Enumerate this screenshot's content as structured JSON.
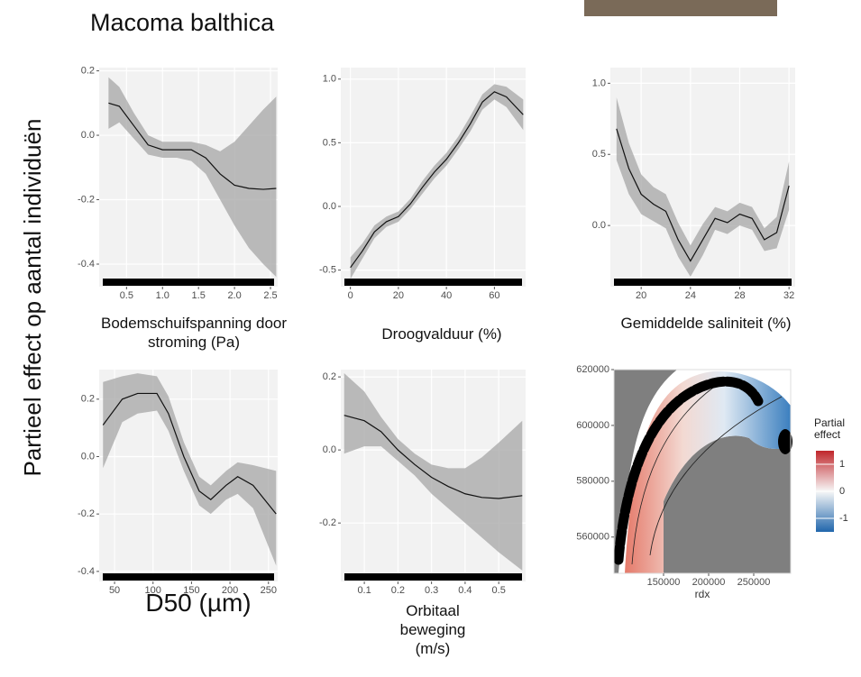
{
  "title": "Macoma balthica",
  "ylabel": "Partieel effect op aantal individuën",
  "chart_data": [
    {
      "type": "line",
      "xlabel": "Bodemschuifspanning door stroming (Pa)",
      "x": [
        0.25,
        0.4,
        0.6,
        0.8,
        1.0,
        1.2,
        1.4,
        1.6,
        1.8,
        2.0,
        2.2,
        2.4,
        2.58
      ],
      "values": [
        0.1,
        0.09,
        0.03,
        -0.03,
        -0.045,
        -0.045,
        -0.045,
        -0.07,
        -0.12,
        -0.155,
        -0.165,
        -0.168,
        -0.165
      ],
      "upper": [
        0.18,
        0.15,
        0.07,
        0.0,
        -0.02,
        -0.02,
        -0.02,
        -0.03,
        -0.05,
        -0.02,
        0.03,
        0.08,
        0.12
      ],
      "lower": [
        0.02,
        0.04,
        -0.01,
        -0.06,
        -0.07,
        -0.07,
        -0.08,
        -0.12,
        -0.2,
        -0.28,
        -0.35,
        -0.4,
        -0.44
      ],
      "xlim": [
        0.12,
        2.6
      ],
      "ylim": [
        -0.47,
        0.21
      ],
      "xticks": [
        0.5,
        {
          "value": 1.0,
          "label": "1.0"
        },
        1.5,
        {
          "value": 2.0,
          "label": "2.0"
        },
        2.5
      ],
      "yticks": [
        0.2,
        {
          "value": 0,
          "label": "0.0"
        },
        -0.2,
        -0.4
      ]
    },
    {
      "type": "line",
      "xlabel": "Droogvalduur (%)",
      "x": [
        0,
        5,
        10,
        15,
        20,
        25,
        30,
        35,
        40,
        45,
        50,
        55,
        60,
        65,
        72
      ],
      "values": [
        -0.48,
        -0.35,
        -0.2,
        -0.12,
        -0.08,
        0.02,
        0.15,
        0.27,
        0.37,
        0.5,
        0.65,
        0.82,
        0.9,
        0.86,
        0.72
      ],
      "upper": [
        -0.4,
        -0.29,
        -0.15,
        -0.08,
        -0.04,
        0.06,
        0.2,
        0.32,
        0.42,
        0.55,
        0.71,
        0.88,
        0.96,
        0.94,
        0.84
      ],
      "lower": [
        -0.57,
        -0.41,
        -0.25,
        -0.16,
        -0.12,
        -0.02,
        0.1,
        0.22,
        0.32,
        0.45,
        0.59,
        0.76,
        0.84,
        0.78,
        0.6
      ],
      "xlim": [
        -4,
        73
      ],
      "ylim": [
        -0.63,
        1.09
      ],
      "xticks": [
        0,
        20,
        40,
        60
      ],
      "yticks": [
        {
          "value": 1.0,
          "label": "1.0"
        },
        0.5,
        {
          "value": 0,
          "label": "0.0"
        },
        -0.5
      ]
    },
    {
      "type": "line",
      "xlabel": "Gemiddelde saliniteit (%)",
      "x": [
        18,
        19,
        20,
        21,
        22,
        23,
        24,
        25,
        26,
        27,
        28,
        29,
        30,
        31,
        32
      ],
      "values": [
        0.68,
        0.4,
        0.22,
        0.15,
        0.1,
        -0.1,
        -0.25,
        -0.1,
        0.05,
        0.02,
        0.08,
        0.05,
        -0.1,
        -0.05,
        0.28
      ],
      "upper": [
        0.9,
        0.58,
        0.36,
        0.27,
        0.22,
        0.02,
        -0.14,
        0.01,
        0.13,
        0.1,
        0.16,
        0.13,
        -0.02,
        0.06,
        0.45
      ],
      "lower": [
        0.46,
        0.22,
        0.08,
        0.03,
        -0.02,
        -0.22,
        -0.36,
        -0.21,
        -0.03,
        -0.06,
        0.0,
        -0.03,
        -0.18,
        -0.16,
        0.11
      ],
      "xlim": [
        17.5,
        32.5
      ],
      "ylim": [
        -0.43,
        1.11
      ],
      "xticks": [
        20,
        24,
        28,
        32
      ],
      "yticks": [
        {
          "value": 1.0,
          "label": "1.0"
        },
        0.5,
        {
          "value": 0,
          "label": "0.0"
        }
      ]
    },
    {
      "type": "line",
      "xlabel": "D50 (µm)",
      "x": [
        35,
        60,
        80,
        105,
        120,
        140,
        160,
        175,
        195,
        210,
        230,
        260
      ],
      "values": [
        0.11,
        0.2,
        0.22,
        0.22,
        0.15,
        0.0,
        -0.12,
        -0.15,
        -0.1,
        -0.07,
        -0.1,
        -0.2
      ],
      "upper": [
        0.26,
        0.28,
        0.29,
        0.28,
        0.21,
        0.05,
        -0.07,
        -0.1,
        -0.05,
        -0.02,
        -0.03,
        -0.05
      ],
      "lower": [
        -0.04,
        0.12,
        0.15,
        0.16,
        0.09,
        -0.05,
        -0.17,
        -0.2,
        -0.15,
        -0.13,
        -0.18,
        -0.38
      ],
      "xlim": [
        30,
        262
      ],
      "ylim": [
        -0.435,
        0.303
      ],
      "xticks": [
        50,
        100,
        150,
        200,
        250
      ],
      "yticks": [
        0.2,
        {
          "value": 0,
          "label": "0.0"
        },
        -0.2,
        -0.4
      ]
    },
    {
      "type": "line",
      "xlabel": "Orbitaal beweging (m/s)",
      "x": [
        0.04,
        0.1,
        0.15,
        0.2,
        0.25,
        0.3,
        0.35,
        0.4,
        0.45,
        0.5,
        0.57
      ],
      "values": [
        0.095,
        0.08,
        0.05,
        0.0,
        -0.04,
        -0.075,
        -0.1,
        -0.12,
        -0.13,
        -0.133,
        -0.125
      ],
      "upper": [
        0.21,
        0.16,
        0.09,
        0.03,
        -0.01,
        -0.04,
        -0.05,
        -0.05,
        -0.02,
        0.02,
        0.08
      ],
      "lower": [
        -0.01,
        0.01,
        0.01,
        -0.03,
        -0.07,
        -0.12,
        -0.16,
        -0.2,
        -0.24,
        -0.28,
        -0.33
      ],
      "xlim": [
        0.03,
        0.58
      ],
      "ylim": [
        -0.36,
        0.22
      ],
      "xticks": [
        0.1,
        0.2,
        0.3,
        0.4,
        0.5
      ],
      "yticks": [
        0.2,
        {
          "value": 0,
          "label": "0.0"
        },
        -0.2
      ]
    },
    {
      "type": "map",
      "xlabel": "rdx",
      "xlim": [
        95000,
        291000
      ],
      "ylim": [
        547000,
        620000
      ],
      "xticks": [
        150000,
        200000,
        250000
      ],
      "yticks": [
        620000,
        600000,
        580000,
        560000
      ],
      "colorbar": {
        "title": "Partial effect",
        "lim": [
          -1.5,
          1.5
        ],
        "ticks": [
          1,
          0,
          -1
        ]
      }
    }
  ]
}
